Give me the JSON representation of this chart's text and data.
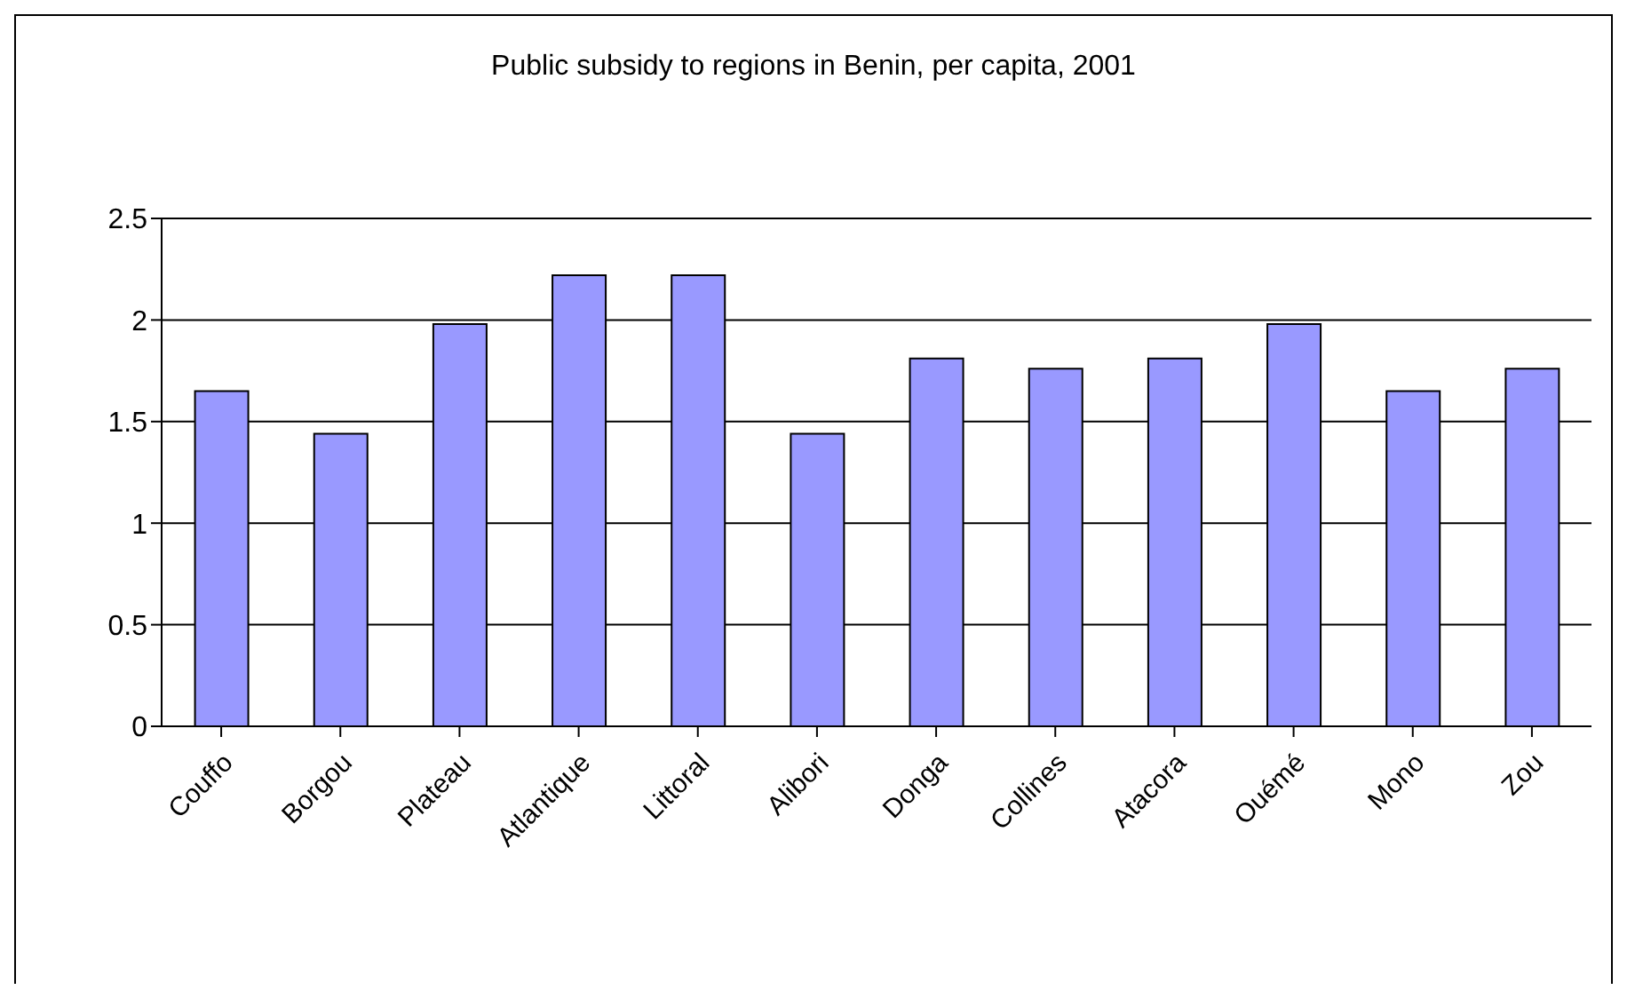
{
  "chart_data": {
    "type": "bar",
    "title": "Public subsidy to regions in Benin, per capita, 2001",
    "categories": [
      "Couffo",
      "Borgou",
      "Plateau",
      "Atlantique",
      "Littoral",
      "Alibori",
      "Donga",
      "Collines",
      "Atacora",
      "Ouémé",
      "Mono",
      "Zou"
    ],
    "values": [
      1.65,
      1.44,
      1.98,
      2.22,
      2.22,
      1.44,
      1.81,
      1.76,
      1.81,
      1.98,
      1.65,
      1.76
    ],
    "color": "#9999ff",
    "ylim": [
      0,
      2.5
    ],
    "yticks": [
      0,
      0.5,
      1,
      1.5,
      2,
      2.5
    ],
    "grid": "y"
  }
}
